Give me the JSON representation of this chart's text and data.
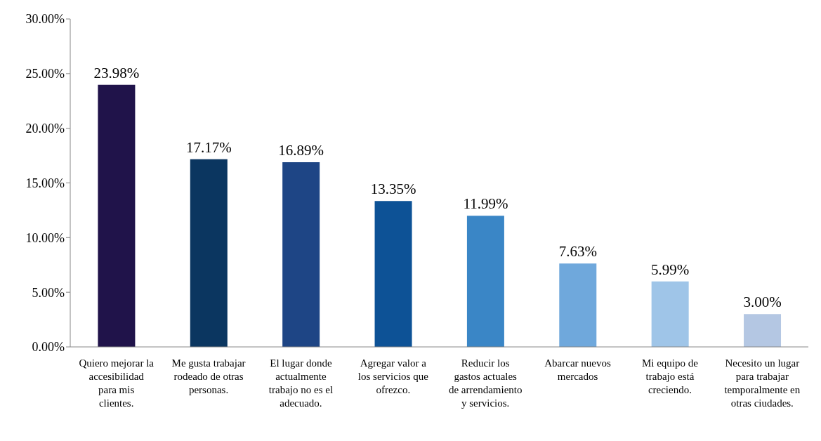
{
  "chart_data": {
    "type": "bar",
    "categories": [
      "Quiero mejorar la accesibilidad para mis clientes.",
      "Me gusta trabajar rodeado de otras personas.",
      "El lugar donde actualmente trabajo no es el adecuado.",
      "Agregar valor a los servicios que ofrezco.",
      "Reducir los gastos actuales de arrendamiento y servicios.",
      "Abarcar nuevos mercados",
      "Mi equipo de trabajo está creciendo.",
      "Necesito un lugar para trabajar temporalmente en otras ciudades."
    ],
    "values": [
      23.98,
      17.17,
      16.89,
      13.35,
      11.99,
      7.63,
      5.99,
      3.0
    ],
    "value_labels": [
      "23.98%",
      "17.17%",
      "16.89%",
      "13.35%",
      "11.99%",
      "7.63%",
      "5.99%",
      "3.00%"
    ],
    "colors": [
      "#20134a",
      "#0b3660",
      "#1e4585",
      "#0d5296",
      "#3a86c6",
      "#6fa8dc",
      "#9fc5e8",
      "#b4c7e3"
    ],
    "ylim": [
      0,
      30
    ],
    "yticks": [
      {
        "value": 0,
        "label": "0.00%"
      },
      {
        "value": 5,
        "label": "5.00%"
      },
      {
        "value": 10,
        "label": "10.00%"
      },
      {
        "value": 15,
        "label": "15.00%"
      },
      {
        "value": 20,
        "label": "20.00%"
      },
      {
        "value": 25,
        "label": "25.00%"
      },
      {
        "value": 30,
        "label": "30.00%"
      }
    ],
    "grid": false,
    "legend": false
  }
}
